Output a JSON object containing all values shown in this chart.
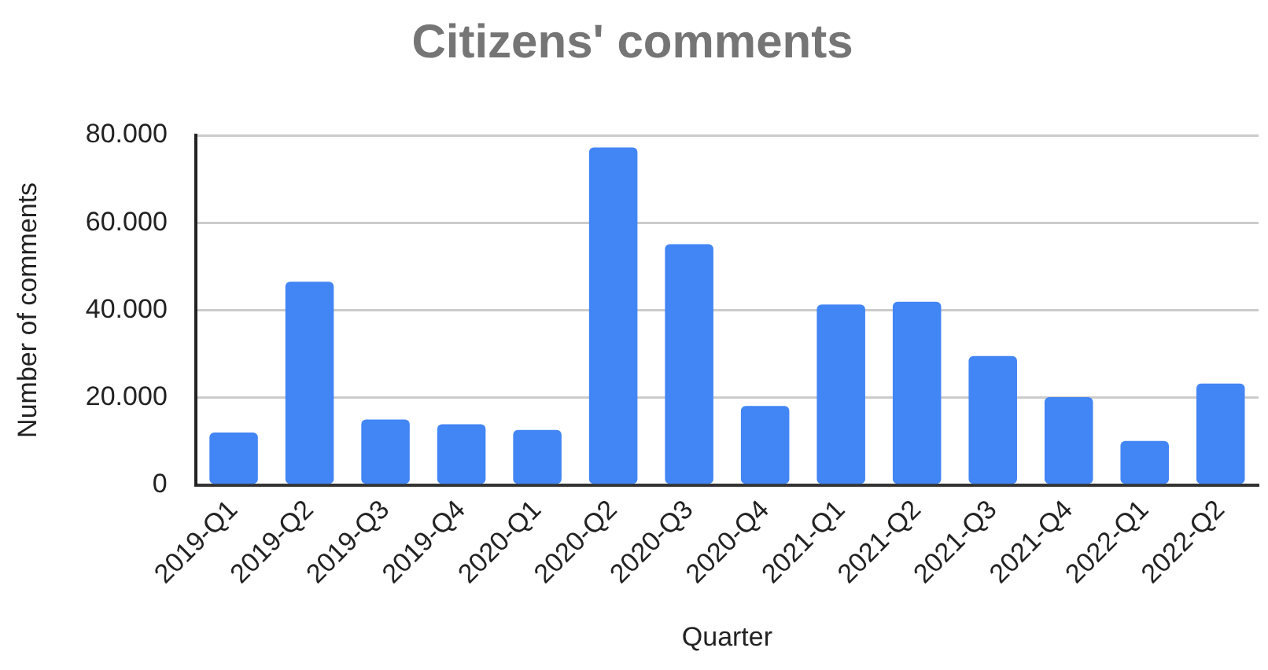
{
  "chart_data": {
    "type": "bar",
    "title": "Citizens' comments",
    "xlabel": "Quarter",
    "ylabel": "Number of comments",
    "categories": [
      "2019-Q1",
      "2019-Q2",
      "2019-Q3",
      "2019-Q4",
      "2020-Q1",
      "2020-Q2",
      "2020-Q3",
      "2020-Q4",
      "2021-Q1",
      "2021-Q2",
      "2021-Q3",
      "2021-Q4",
      "2022-Q1",
      "2022-Q2"
    ],
    "values": [
      12000,
      46500,
      15000,
      13900,
      12600,
      77200,
      55100,
      18100,
      41300,
      41900,
      29500,
      20100,
      10100,
      23200
    ],
    "color": "#4285f4",
    "ylim": [
      0,
      80000
    ],
    "yticks": [
      {
        "value": 0,
        "label": "0"
      },
      {
        "value": 20000,
        "label": "20.000"
      },
      {
        "value": 40000,
        "label": "40.000"
      },
      {
        "value": 60000,
        "label": "60.000"
      },
      {
        "value": 80000,
        "label": "80.000"
      }
    ],
    "grid": "y",
    "legend": false
  }
}
